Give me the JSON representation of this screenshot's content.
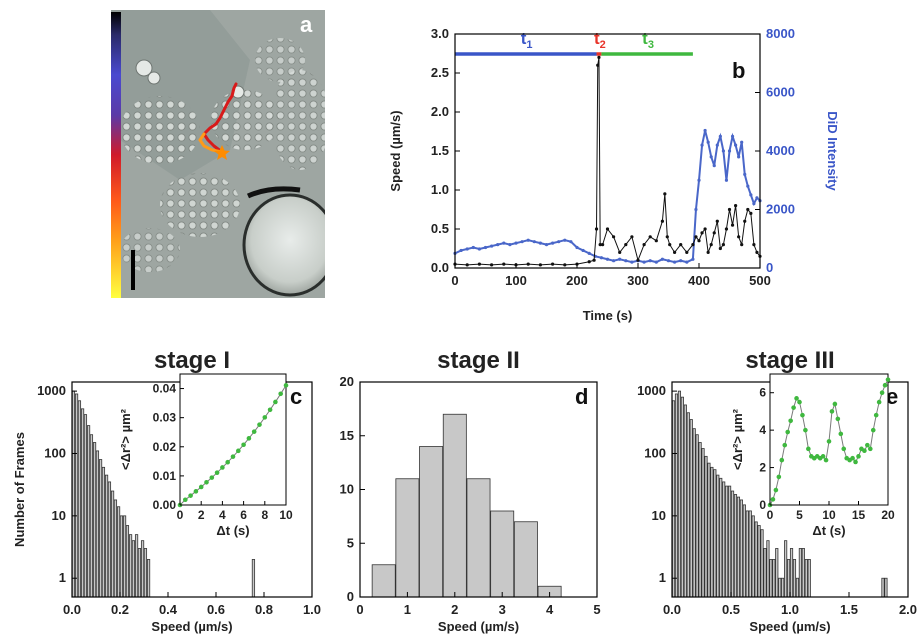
{
  "panel_a": {
    "letter": "a",
    "colors": {
      "track": [
        "#ff9a1a",
        "#ff4d1a",
        "#d81a1a"
      ],
      "start_marker": "#ff8c00",
      "scale_bar": "#000000"
    }
  },
  "chart_data": [
    {
      "panel": "b",
      "type": "line",
      "letter": "b",
      "xlabel": "Time (s)",
      "ylabel": "Speed (µm/s)",
      "y2label": "DiD Intensity",
      "xlim": [
        0,
        500
      ],
      "ylim": [
        0,
        3.0
      ],
      "y2lim": [
        0,
        8000
      ],
      "xticks": [
        "0",
        "100",
        "200",
        "300",
        "400",
        "500"
      ],
      "yticks": [
        "0.0",
        "0.5",
        "1.0",
        "1.5",
        "2.0",
        "2.5",
        "3.0"
      ],
      "y2ticks": [
        "0",
        "2000",
        "4000",
        "6000",
        "8000"
      ],
      "stages": [
        {
          "label": "t",
          "sub": "1",
          "start": 0,
          "end": 232,
          "color": "#3a56c8"
        },
        {
          "label": "t",
          "sub": "2",
          "start": 232,
          "end": 240,
          "color": "#e8342a"
        },
        {
          "label": "t",
          "sub": "3",
          "start": 240,
          "end": 390,
          "color": "#3fb83f"
        }
      ],
      "series": [
        {
          "name": "Speed",
          "color": "#111111",
          "x": [
            0,
            20,
            40,
            60,
            80,
            100,
            120,
            140,
            160,
            180,
            200,
            220,
            228,
            232,
            234,
            236,
            238,
            242,
            250,
            260,
            270,
            280,
            290,
            300,
            310,
            320,
            330,
            340,
            344,
            348,
            352,
            360,
            370,
            380,
            390,
            395,
            400,
            405,
            410,
            415,
            420,
            425,
            430,
            435,
            440,
            445,
            450,
            455,
            460,
            465,
            470,
            475,
            480,
            485,
            490,
            495,
            500
          ],
          "values": [
            0.05,
            0.04,
            0.05,
            0.04,
            0.05,
            0.04,
            0.05,
            0.04,
            0.05,
            0.04,
            0.05,
            0.08,
            0.1,
            0.5,
            2.6,
            2.7,
            0.3,
            0.3,
            0.5,
            0.4,
            0.2,
            0.3,
            0.4,
            0.1,
            0.3,
            0.4,
            0.35,
            0.6,
            0.95,
            0.4,
            0.3,
            0.2,
            0.3,
            0.2,
            0.3,
            0.4,
            0.35,
            0.45,
            0.5,
            0.2,
            0.3,
            0.45,
            0.6,
            0.25,
            0.3,
            0.5,
            0.75,
            0.55,
            0.8,
            0.4,
            0.3,
            0.6,
            0.75,
            0.7,
            0.3,
            0.2,
            0.15
          ]
        },
        {
          "name": "DiD Intensity",
          "color": "#4a67c9",
          "x": [
            0,
            10,
            20,
            30,
            40,
            50,
            60,
            70,
            80,
            90,
            100,
            110,
            120,
            130,
            140,
            150,
            160,
            170,
            180,
            190,
            200,
            210,
            220,
            230,
            240,
            250,
            260,
            270,
            280,
            290,
            300,
            310,
            320,
            330,
            340,
            350,
            360,
            370,
            380,
            390,
            395,
            400,
            405,
            410,
            415,
            420,
            425,
            430,
            435,
            440,
            445,
            450,
            455,
            460,
            465,
            470,
            475,
            480,
            485,
            490,
            495,
            500
          ],
          "values": [
            500,
            600,
            650,
            700,
            650,
            700,
            750,
            800,
            850,
            800,
            850,
            900,
            950,
            900,
            850,
            800,
            850,
            900,
            950,
            900,
            700,
            600,
            500,
            400,
            350,
            300,
            250,
            300,
            250,
            200,
            250,
            200,
            250,
            200,
            300,
            250,
            200,
            250,
            200,
            300,
            2000,
            3000,
            4200,
            4700,
            4300,
            3800,
            3500,
            4200,
            4500,
            4000,
            3000,
            4000,
            4500,
            4200,
            3800,
            4300,
            3200,
            2800,
            2500,
            2200,
            2400,
            2300
          ]
        }
      ]
    },
    {
      "panel": "c",
      "type": "bar",
      "title": "stage I",
      "letter": "c",
      "xlabel": "Speed (µm/s)",
      "ylabel": "Number of Frames",
      "yscale": "log",
      "xlim": [
        0,
        1.0
      ],
      "ylim": [
        0.5,
        1400
      ],
      "xticks": [
        "0.0",
        "0.2",
        "0.4",
        "0.6",
        "0.8",
        "1.0"
      ],
      "yticks": [
        "1",
        "10",
        "100",
        "1000"
      ],
      "bin_width": 0.0125,
      "x": [
        0.006,
        0.019,
        0.031,
        0.044,
        0.056,
        0.069,
        0.081,
        0.094,
        0.106,
        0.119,
        0.131,
        0.144,
        0.156,
        0.169,
        0.181,
        0.194,
        0.206,
        0.219,
        0.231,
        0.244,
        0.256,
        0.269,
        0.281,
        0.294,
        0.306,
        0.319,
        0.756
      ],
      "values": [
        1000,
        900,
        700,
        520,
        420,
        280,
        200,
        150,
        110,
        80,
        60,
        45,
        35,
        25,
        18,
        14,
        10,
        10,
        7,
        5,
        4,
        5,
        3,
        4,
        3,
        2,
        2
      ],
      "inset": {
        "type": "line",
        "xlabel": "Δt (s)",
        "ylabel": "<Δr²> µm²",
        "xlim": [
          0,
          10
        ],
        "ylim": [
          0,
          0.045
        ],
        "xticks": [
          "0",
          "2",
          "4",
          "6",
          "8",
          "10"
        ],
        "yticks": [
          "0.00",
          "0.01",
          "0.02",
          "0.03",
          "0.04"
        ],
        "color": "#3fb83f",
        "x": [
          0,
          0.5,
          1,
          1.5,
          2,
          2.5,
          3,
          3.5,
          4,
          4.5,
          5,
          5.5,
          6,
          6.5,
          7,
          7.5,
          8,
          8.5,
          9,
          9.5,
          10
        ],
        "values": [
          0.0,
          0.0018,
          0.0032,
          0.0047,
          0.0062,
          0.0078,
          0.0094,
          0.0111,
          0.0129,
          0.0147,
          0.0166,
          0.0186,
          0.0207,
          0.0229,
          0.0252,
          0.0276,
          0.0301,
          0.0327,
          0.0354,
          0.0382,
          0.0411
        ]
      }
    },
    {
      "panel": "d",
      "type": "bar",
      "title": "stage II",
      "letter": "d",
      "xlabel": "Speed (µm/s)",
      "ylabel": "",
      "xlim": [
        0,
        5
      ],
      "ylim": [
        0,
        20
      ],
      "xticks": [
        "0",
        "1",
        "2",
        "3",
        "4",
        "5"
      ],
      "yticks": [
        "0",
        "5",
        "10",
        "15",
        "20"
      ],
      "bin_width": 0.5,
      "x": [
        0.5,
        1.0,
        1.5,
        2.0,
        2.5,
        3.0,
        3.5,
        4.0
      ],
      "values": [
        3,
        11,
        14,
        17,
        11,
        8,
        7,
        1
      ]
    },
    {
      "panel": "e",
      "type": "bar",
      "title": "stage III",
      "letter": "e",
      "xlabel": "Speed (µm/s)",
      "ylabel": "",
      "yscale": "log",
      "xlim": [
        0,
        2.0
      ],
      "ylim": [
        0.5,
        1400
      ],
      "xticks": [
        "0.0",
        "0.5",
        "1.0",
        "1.5",
        "2.0"
      ],
      "yticks": [
        "1",
        "10",
        "100",
        "1000"
      ],
      "bin_width": 0.025,
      "x": [
        0.013,
        0.038,
        0.063,
        0.088,
        0.113,
        0.138,
        0.163,
        0.188,
        0.213,
        0.238,
        0.263,
        0.288,
        0.313,
        0.338,
        0.363,
        0.388,
        0.413,
        0.438,
        0.463,
        0.488,
        0.513,
        0.538,
        0.563,
        0.588,
        0.613,
        0.638,
        0.663,
        0.688,
        0.713,
        0.738,
        0.763,
        0.788,
        0.813,
        0.838,
        0.863,
        0.888,
        0.913,
        0.938,
        0.963,
        0.988,
        1.013,
        1.038,
        1.063,
        1.088,
        1.113,
        1.138,
        1.163,
        1.788,
        1.813
      ],
      "values": [
        700,
        900,
        1000,
        800,
        600,
        450,
        350,
        250,
        200,
        150,
        120,
        90,
        70,
        60,
        55,
        45,
        40,
        35,
        30,
        30,
        25,
        22,
        20,
        18,
        15,
        12,
        12,
        10,
        8,
        7,
        6,
        3,
        4,
        2,
        2,
        3,
        1,
        1,
        4,
        2,
        3,
        2,
        1,
        3,
        3,
        2,
        2,
        1,
        1
      ],
      "inset": {
        "type": "line",
        "xlabel": "Δt (s)",
        "ylabel": "<Δr²> µm²",
        "xlim": [
          0,
          20
        ],
        "ylim": [
          0,
          7
        ],
        "xticks": [
          "0",
          "5",
          "10",
          "15",
          "20"
        ],
        "yticks": [
          "0",
          "2",
          "4",
          "6"
        ],
        "color": "#3fb83f",
        "x": [
          0,
          0.5,
          1,
          1.5,
          2,
          2.5,
          3,
          3.5,
          4,
          4.5,
          5,
          5.5,
          6,
          6.5,
          7,
          7.5,
          8,
          8.5,
          9,
          9.5,
          10,
          10.5,
          11,
          11.5,
          12,
          12.5,
          13,
          13.5,
          14,
          14.5,
          15,
          15.5,
          16,
          16.5,
          17,
          17.5,
          18,
          18.5,
          19,
          19.5,
          20
        ],
        "values": [
          0.0,
          0.3,
          0.8,
          1.5,
          2.4,
          3.2,
          3.9,
          4.5,
          5.2,
          5.7,
          5.5,
          4.8,
          4.0,
          3.0,
          2.6,
          2.5,
          2.6,
          2.5,
          2.6,
          2.4,
          3.4,
          5.0,
          5.4,
          4.6,
          3.8,
          3.0,
          2.5,
          2.4,
          2.5,
          2.3,
          2.6,
          3.0,
          2.9,
          3.2,
          3.0,
          4.0,
          4.8,
          5.5,
          6.0,
          6.4,
          6.7
        ]
      }
    }
  ]
}
